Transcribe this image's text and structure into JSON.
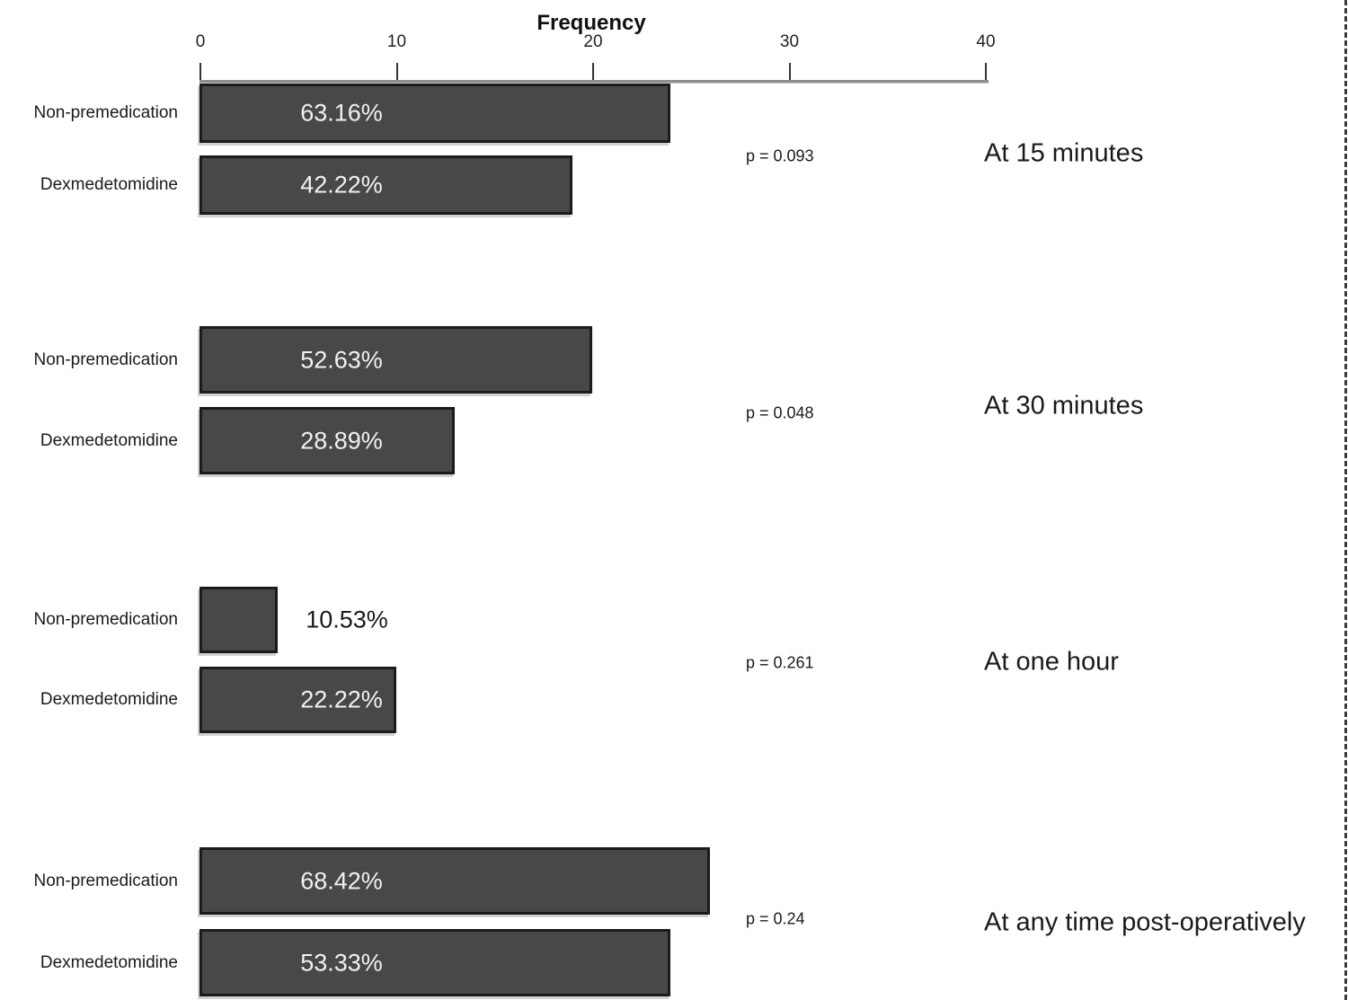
{
  "chart_data": {
    "type": "bar",
    "orientation": "horizontal",
    "axis": {
      "label": "Frequency",
      "min": 0,
      "max": 40,
      "ticks": [
        0,
        10,
        20,
        30,
        40
      ],
      "position": "top"
    },
    "legend": "none",
    "grid": false,
    "bar_color": "#484848",
    "bar_border_color": "#1b1b1b",
    "value_label_light": "#f2f2f2",
    "value_label_dark": "#1a1a1a",
    "groups": [
      {
        "time_label": "At 15 minutes",
        "p_label": "p = 0.093",
        "rows": [
          {
            "category": "Non-premedication",
            "frequency": 24,
            "percent_label": "63.16%",
            "label_inside": true
          },
          {
            "category": "Dexmedetomidine",
            "frequency": 19,
            "percent_label": "42.22%",
            "label_inside": true
          }
        ]
      },
      {
        "time_label": "At 30 minutes",
        "p_label": "p = 0.048",
        "rows": [
          {
            "category": "Non-premedication",
            "frequency": 20,
            "percent_label": "52.63%",
            "label_inside": true
          },
          {
            "category": "Dexmedetomidine",
            "frequency": 13,
            "percent_label": "28.89%",
            "label_inside": true
          }
        ]
      },
      {
        "time_label": "At one hour",
        "p_label": "p = 0.261",
        "rows": [
          {
            "category": "Non-premedication",
            "frequency": 4,
            "percent_label": "10.53%",
            "label_inside": false
          },
          {
            "category": "Dexmedetomidine",
            "frequency": 10,
            "percent_label": "22.22%",
            "label_inside": true
          }
        ]
      },
      {
        "time_label": "At any time post-operatively",
        "p_label": "p = 0.24",
        "rows": [
          {
            "category": "Non-premedication",
            "frequency": 26,
            "percent_label": "68.42%",
            "label_inside": true
          },
          {
            "category": "Dexmedetomidine",
            "frequency": 24,
            "percent_label": "53.33%",
            "label_inside": true
          }
        ]
      }
    ]
  }
}
